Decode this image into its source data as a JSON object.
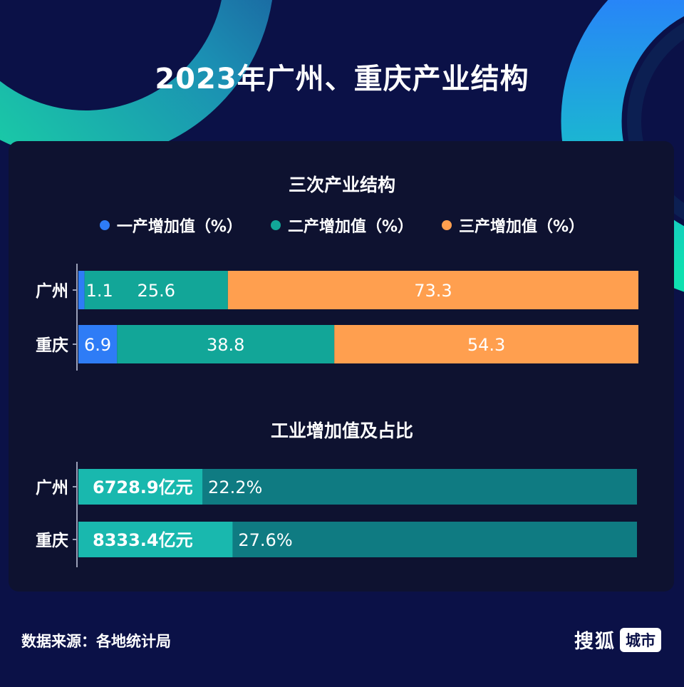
{
  "title": "2023年广州、重庆产业结构",
  "colors": {
    "background": "#0b1147",
    "primary": "#2e7cf6",
    "secondary": "#12a698",
    "tertiary": "#ff9f4f",
    "industry_value": "#19b8ae",
    "industry_rest": "#0f7b82"
  },
  "chart_data": [
    {
      "type": "bar",
      "orientation": "horizontal",
      "stacked": true,
      "title": "三次产业结构",
      "legend_position": "top",
      "categories": [
        "广州",
        "重庆"
      ],
      "series": [
        {
          "name": "一产增加值（%）",
          "values": [
            1.1,
            6.9
          ]
        },
        {
          "name": "二产增加值（%）",
          "values": [
            25.6,
            38.8
          ]
        },
        {
          "name": "三产增加值（%）",
          "values": [
            73.3,
            54.3
          ]
        }
      ],
      "xlim": [
        0,
        100
      ]
    },
    {
      "type": "bar",
      "orientation": "horizontal",
      "title": "工业增加值及占比",
      "categories": [
        "广州",
        "重庆"
      ],
      "series": [
        {
          "values": [
            22.2,
            27.6
          ]
        }
      ],
      "value_labels": [
        "6728.9亿元",
        "8333.4亿元"
      ],
      "share_labels": [
        "22.2%",
        "27.6%"
      ],
      "xlim": [
        0,
        100
      ]
    }
  ],
  "footer": {
    "source": "数据来源：各地统计局",
    "brand_name": "搜狐",
    "brand_badge": "城市"
  }
}
